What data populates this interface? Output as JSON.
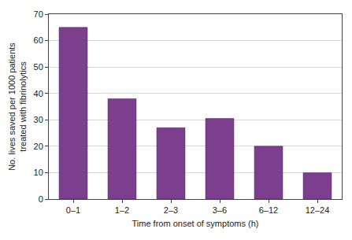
{
  "chart_data": {
    "type": "bar",
    "x_label": "Time from onset of symptoms (h)",
    "y_label": "No. lives saved per 1000 patients treated with fibrinolytics",
    "categories": [
      "0–1",
      "1–2",
      "2–3",
      "3–6",
      "6–12",
      "12–24"
    ],
    "values": [
      65,
      38,
      27,
      30.5,
      20,
      10
    ],
    "color": "#7b3f8e",
    "ylim": [
      0,
      70
    ],
    "yticks": [
      0,
      10,
      20,
      30,
      40,
      50,
      60,
      70
    ],
    "grid": true
  }
}
